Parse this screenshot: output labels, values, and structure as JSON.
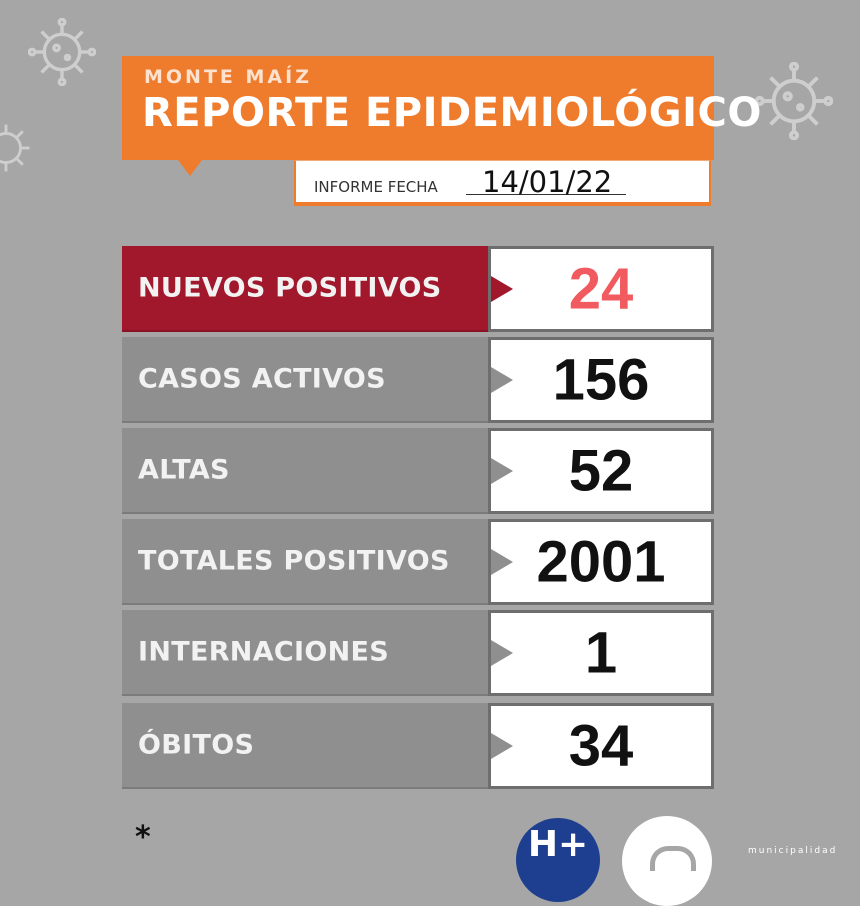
{
  "header": {
    "city": "MONTE MAÍZ",
    "title": "REPORTE EPIDEMIOLÓGICO",
    "accent_color": "#ef7b2c"
  },
  "report_date": {
    "label": "INFORME FECHA",
    "value": "14/01/22"
  },
  "stats": [
    {
      "label": "NUEVOS POSITIVOS",
      "value": "24",
      "highlight": true
    },
    {
      "label": "CASOS ACTIVOS",
      "value": "156",
      "highlight": false
    },
    {
      "label": "ALTAS",
      "value": "52",
      "highlight": false
    },
    {
      "label": "TOTALES POSITIVOS",
      "value": "2001",
      "highlight": false
    },
    {
      "label": "INTERNACIONES",
      "value": "1",
      "highlight": false
    },
    {
      "label": "ÓBITOS",
      "value": "34",
      "highlight": false
    }
  ],
  "colors": {
    "background": "#a6a6a6",
    "highlight_row": "#a1172b",
    "highlight_value": "#f15a5e",
    "normal_row": "#8f8f8f"
  },
  "footer": {
    "footnote": "*",
    "logo_h_plus": "H+",
    "municipalidad": "municipalidad"
  },
  "icons": [
    "virus-icon",
    "h-plus-logo",
    "municipalidad-logo"
  ]
}
